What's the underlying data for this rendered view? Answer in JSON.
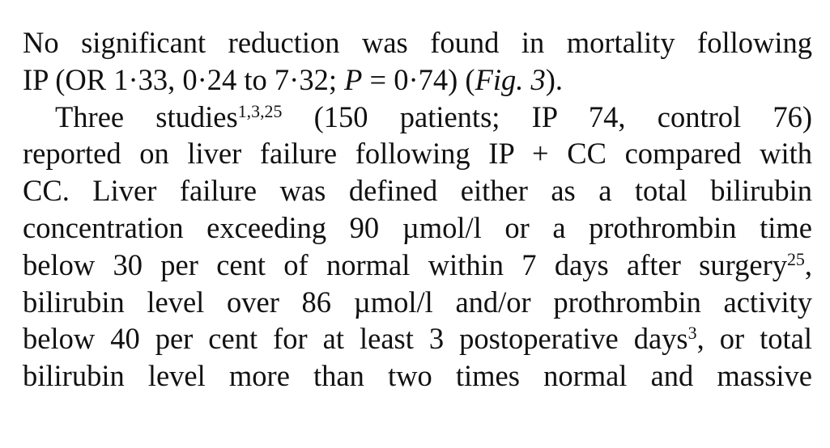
{
  "lines": [
    {
      "a": "No significant reduction was found in mortality following"
    },
    {
      "a": "IP (OR 1·33, 0·24 to 7·32; ",
      "p": "P",
      "b": " = 0·74) (",
      "fig": "Fig. 3",
      "c": ")."
    },
    {
      "a": "Three studies",
      "sup": "1,3,25",
      "b": " (150 patients; IP 74, control 76)"
    },
    {
      "a": "reported on liver failure following IP + CC compared with"
    },
    {
      "a": "CC. Liver failure was defined either as a total bilirubin"
    },
    {
      "a": "concentration exceeding 90 µmol/l or a prothrombin time"
    },
    {
      "a": "below 30 per cent of normal within 7 days after surgery",
      "sup": "25",
      "b": ","
    },
    {
      "a": "bilirubin level over 86 µmol/l and/or prothrombin activity"
    },
    {
      "a": "below 40 per cent for at least 3 postoperative days",
      "sup": "3",
      "b": ", or total"
    },
    {
      "a": "bilirubin level more than two times normal and massive"
    }
  ]
}
